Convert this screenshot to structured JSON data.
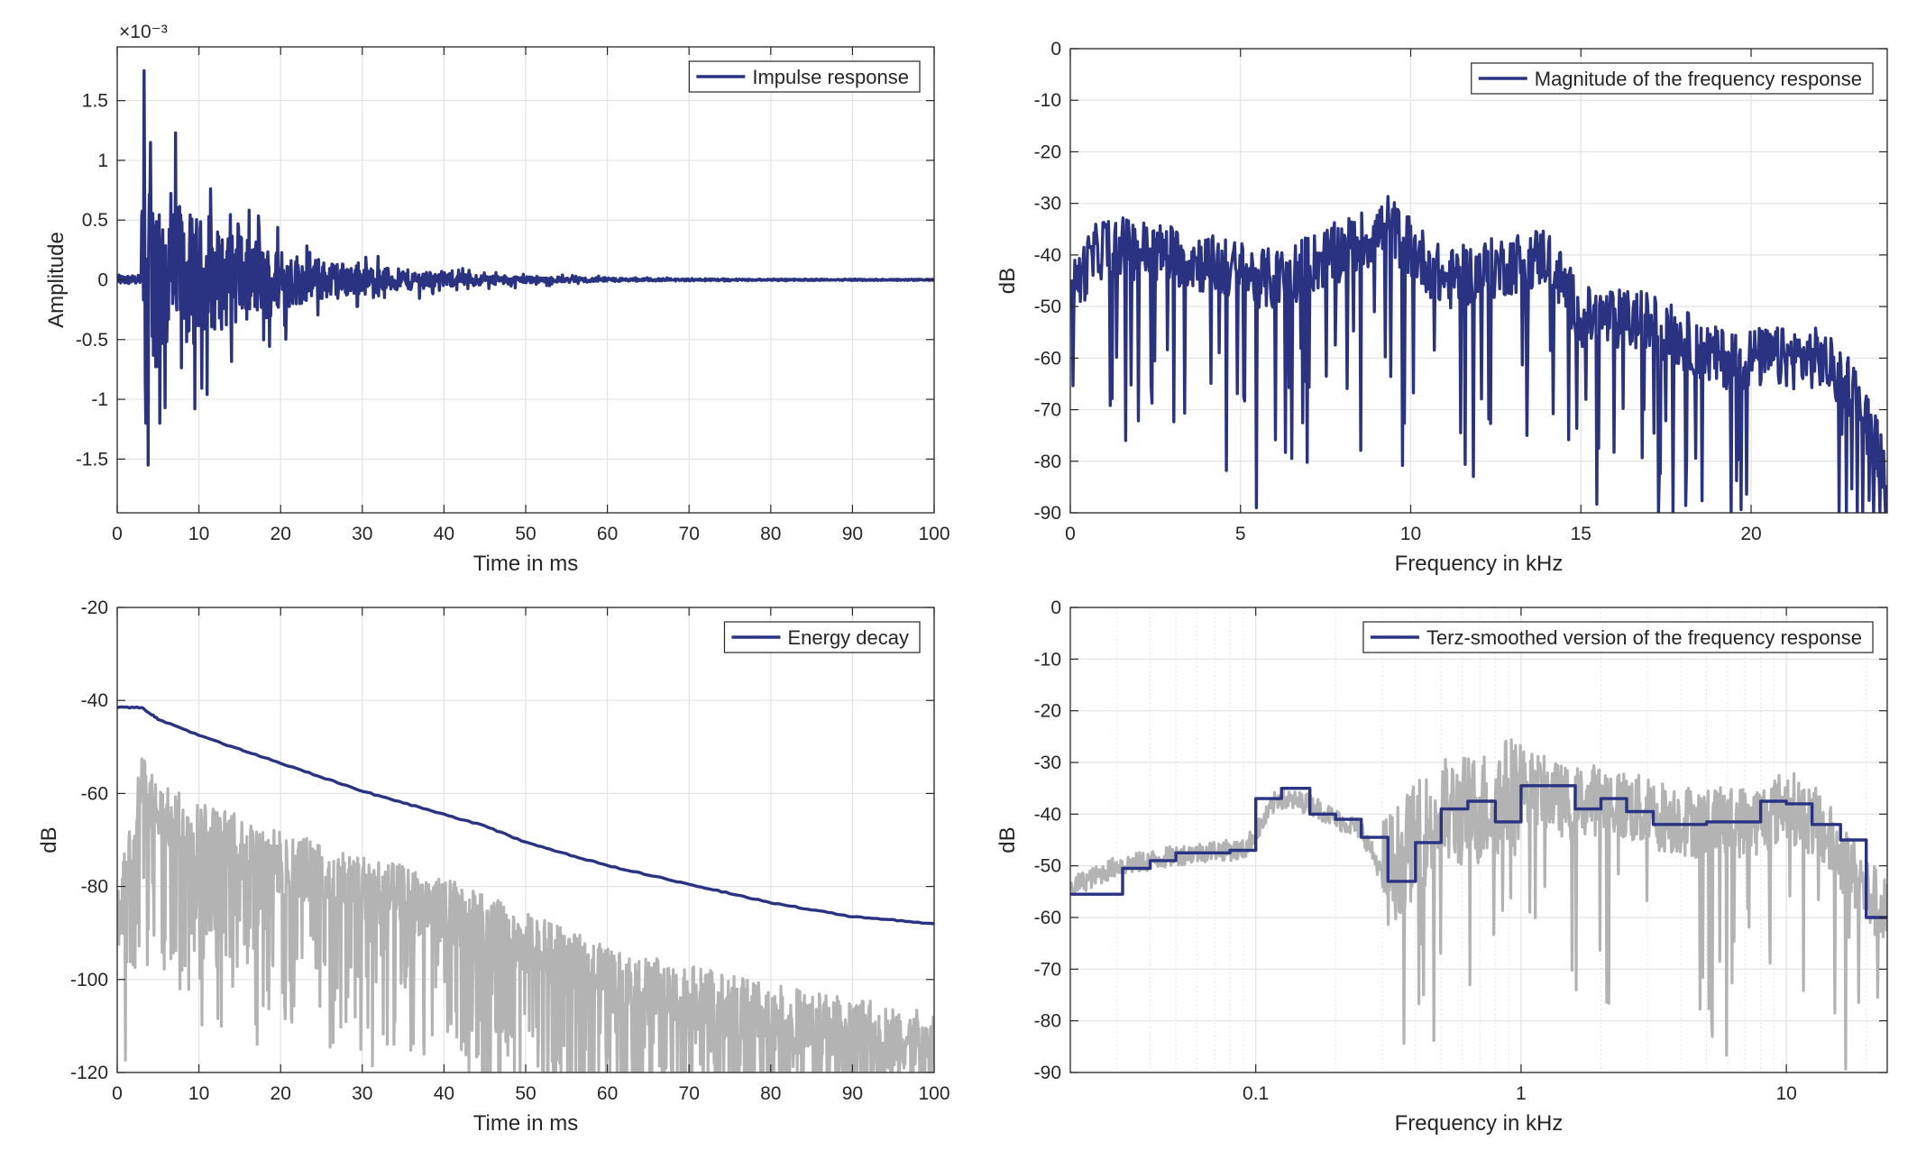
{
  "chart_data": [
    {
      "id": "impulse",
      "type": "line",
      "xlabel": "Time in ms",
      "ylabel": "Amplitude",
      "exponent_label": "×10⁻³",
      "xlim": [
        0,
        100
      ],
      "ylim": [
        -1.95,
        1.95
      ],
      "xticks": [
        0,
        10,
        20,
        30,
        40,
        50,
        60,
        70,
        80,
        90,
        100
      ],
      "xtick_labels": [
        "0",
        "10",
        "20",
        "30",
        "40",
        "50",
        "60",
        "70",
        "80",
        "90",
        "100"
      ],
      "yticks": [
        -1.5,
        -1,
        -0.5,
        0,
        0.5,
        1,
        1.5
      ],
      "ytick_labels": [
        "-1.5",
        "-1",
        "-0.5",
        "0",
        "0.5",
        "1",
        "1.5"
      ],
      "grid": true,
      "legend_position": "top-right",
      "series": [
        {
          "name": "Impulse response",
          "color": "#2a3282",
          "signal": "impulse",
          "x_start": 0,
          "x_end": 100,
          "onset": 3,
          "peak": 1.75,
          "min": -1.55,
          "decay_ms": 14
        }
      ]
    },
    {
      "id": "magnitude",
      "type": "line",
      "xlabel": "Frequency in kHz",
      "ylabel": "dB",
      "xlim": [
        0,
        24
      ],
      "ylim": [
        -90,
        0
      ],
      "xticks": [
        0,
        5,
        10,
        15,
        20
      ],
      "xtick_labels": [
        "0",
        "5",
        "10",
        "15",
        "20"
      ],
      "yticks": [
        0,
        -10,
        -20,
        -30,
        -40,
        -50,
        -60,
        -70,
        -80,
        -90
      ],
      "ytick_labels": [
        "0",
        "-10",
        "-20",
        "-30",
        "-40",
        "-50",
        "-60",
        "-70",
        "-80",
        "-90"
      ],
      "grid": true,
      "legend_position": "top-right",
      "series": [
        {
          "name": "Magnitude of the frequency response",
          "color": "#2a3282",
          "signal": "magnitude",
          "x_start": 0,
          "x_end": 24,
          "envelope_x": [
            0,
            0.5,
            1,
            3,
            6,
            9,
            9.3,
            11,
            14,
            15,
            17,
            19,
            20,
            22,
            23,
            24
          ],
          "envelope_y": [
            -48,
            -42,
            -38,
            -40,
            -45,
            -36,
            -34,
            -45,
            -40,
            -52,
            -53,
            -60,
            -60,
            -60,
            -66,
            -82
          ]
        }
      ]
    },
    {
      "id": "energy",
      "type": "line",
      "xlabel": "Time in ms",
      "ylabel": "dB",
      "xlim": [
        0,
        100
      ],
      "ylim": [
        -120,
        -20
      ],
      "xticks": [
        0,
        10,
        20,
        30,
        40,
        50,
        60,
        70,
        80,
        90,
        100
      ],
      "xtick_labels": [
        "0",
        "10",
        "20",
        "30",
        "40",
        "50",
        "60",
        "70",
        "80",
        "90",
        "100"
      ],
      "yticks": [
        -20,
        -40,
        -60,
        -80,
        -100,
        -120
      ],
      "ytick_labels": [
        "-20",
        "-40",
        "-60",
        "-80",
        "-100",
        "-120"
      ],
      "grid": true,
      "legend_position": "top-right",
      "series": [
        {
          "name": "Energy decay",
          "color": "#2a3282",
          "x": [
            0,
            3,
            5,
            10,
            15,
            20,
            25,
            30,
            35,
            40,
            45,
            50,
            55,
            60,
            65,
            70,
            75,
            80,
            85,
            90,
            95,
            100
          ],
          "y": [
            -41.5,
            -41.5,
            -44,
            -47.5,
            -50.5,
            -53.5,
            -56.5,
            -59.5,
            -62,
            -64.5,
            -67,
            -70.5,
            -73,
            -75.5,
            -77.5,
            -79.5,
            -81.5,
            -83.5,
            -85,
            -86.5,
            -87.2,
            -88
          ]
        },
        {
          "color": "#b3b3b3",
          "signal": "energy-noise",
          "x_start": 0,
          "x_end": 100,
          "onset": 3,
          "envelope_x": [
            0,
            3,
            5,
            20,
            40,
            60,
            80,
            100
          ],
          "envelope_y": [
            -88,
            -58,
            -65,
            -75,
            -85,
            -100,
            -108,
            -114
          ]
        }
      ]
    },
    {
      "id": "terz",
      "type": "line",
      "xlabel": "Frequency in kHz",
      "ylabel": "dB",
      "xscale": "log",
      "xlim": [
        0.02,
        24
      ],
      "ylim": [
        -90,
        0
      ],
      "xticks": [
        0.1,
        1,
        10
      ],
      "xtick_labels": [
        "0.1",
        "1",
        "10"
      ],
      "yticks": [
        0,
        -10,
        -20,
        -30,
        -40,
        -50,
        -60,
        -70,
        -80,
        -90
      ],
      "ytick_labels": [
        "0",
        "-10",
        "-20",
        "-30",
        "-40",
        "-50",
        "-60",
        "-70",
        "-80",
        "-90"
      ],
      "grid": true,
      "legend_position": "top-right",
      "series": [
        {
          "color": "#b3b3b3",
          "signal": "terz-raw",
          "x_start": 0.02,
          "x_end": 24,
          "envelope_x": [
            0.02,
            0.03,
            0.05,
            0.07,
            0.09,
            0.12,
            0.16,
            0.2,
            0.25,
            0.3,
            0.4,
            0.5,
            0.7,
            1,
            1.5,
            2,
            3,
            5,
            8,
            10,
            13,
            16,
            20,
            24
          ],
          "envelope_y": [
            -54,
            -50,
            -48,
            -47,
            -47,
            -37,
            -38,
            -41,
            -43,
            -52,
            -45,
            -40,
            -39,
            -34,
            -38,
            -37,
            -40,
            -42,
            -41,
            -38,
            -42,
            -48,
            -55,
            -60
          ]
        },
        {
          "name": "Terz-smoothed version of the frequency response",
          "color": "#2a3282",
          "step": true,
          "x": [
            0.02,
            0.0315,
            0.04,
            0.05,
            0.063,
            0.08,
            0.1,
            0.125,
            0.16,
            0.2,
            0.25,
            0.315,
            0.4,
            0.5,
            0.63,
            0.8,
            1,
            1.25,
            1.6,
            2,
            2.5,
            3.15,
            4,
            5,
            6.3,
            8,
            10,
            12.5,
            16,
            20
          ],
          "y": [
            -55.5,
            -50.5,
            -49,
            -47.5,
            -47.5,
            -47,
            -37,
            -35,
            -40,
            -41,
            -44.5,
            -53,
            -45.5,
            -39,
            -37.5,
            -41.5,
            -34.5,
            -34.5,
            -39,
            -37,
            -39.5,
            -42,
            -42,
            -41.5,
            -41.5,
            -37.5,
            -38,
            -42,
            -45,
            -60
          ]
        }
      ]
    }
  ]
}
